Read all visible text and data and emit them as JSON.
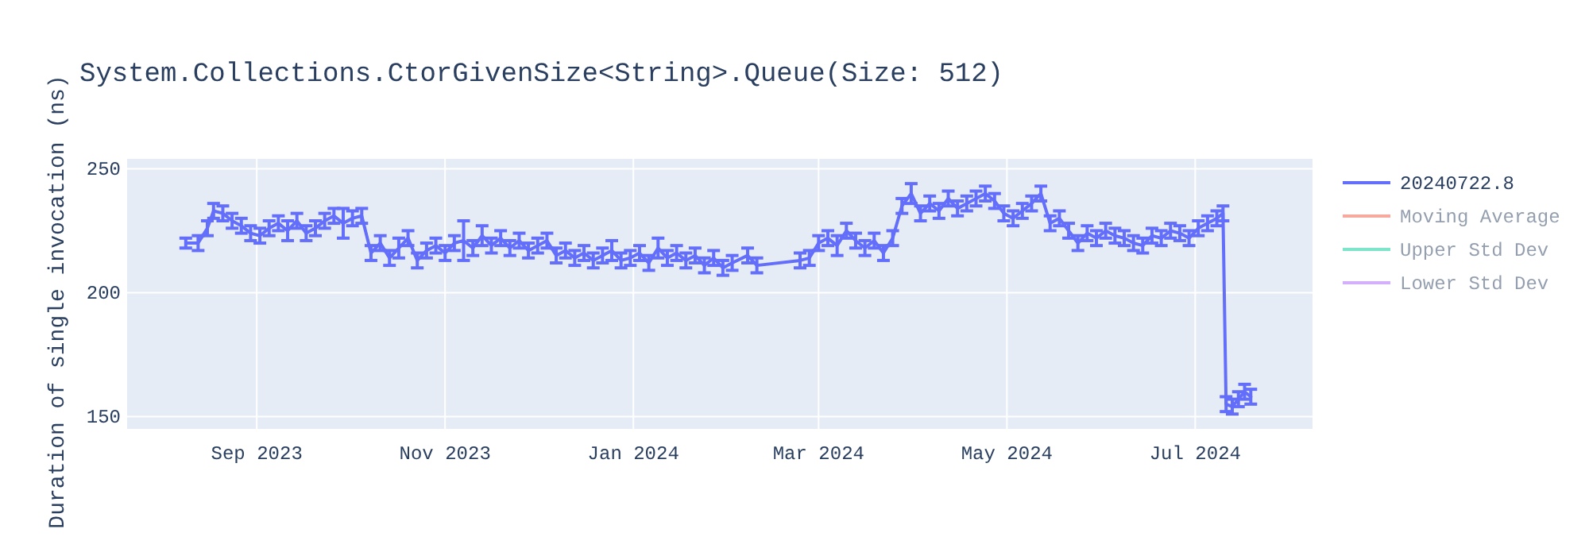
{
  "chart_data": {
    "type": "line",
    "title": "System.Collections.CtorGivenSize<String>.Queue(Size: 512)",
    "ylabel": "Duration of single invocation (ns)",
    "xlim": [
      "2023-07-21",
      "2024-08-08"
    ],
    "xticks": [
      {
        "value": "2023-09-01",
        "label": "Sep 2023"
      },
      {
        "value": "2023-11-01",
        "label": "Nov 2023"
      },
      {
        "value": "2024-01-01",
        "label": "Jan 2024"
      },
      {
        "value": "2024-03-01",
        "label": "Mar 2024"
      },
      {
        "value": "2024-05-01",
        "label": "May 2024"
      },
      {
        "value": "2024-07-01",
        "label": "Jul 2024"
      }
    ],
    "ylim": [
      145,
      254
    ],
    "yticks": [
      150,
      200,
      250
    ],
    "grid": true,
    "legend": "top right",
    "marker": "none",
    "line_style": "solid",
    "series": [
      {
        "name": "20240722.8",
        "color": "#636efa",
        "x": [
          "2023-08-09",
          "2023-08-13",
          "2023-08-16",
          "2023-08-18",
          "2023-08-21",
          "2023-08-24",
          "2023-08-27",
          "2023-08-30",
          "2023-09-02",
          "2023-09-05",
          "2023-09-08",
          "2023-09-11",
          "2023-09-14",
          "2023-09-17",
          "2023-09-20",
          "2023-09-23",
          "2023-09-26",
          "2023-09-29",
          "2023-10-02",
          "2023-10-05",
          "2023-10-08",
          "2023-10-11",
          "2023-10-14",
          "2023-10-17",
          "2023-10-20",
          "2023-10-23",
          "2023-10-26",
          "2023-10-29",
          "2023-11-01",
          "2023-11-04",
          "2023-11-07",
          "2023-11-10",
          "2023-11-13",
          "2023-11-16",
          "2023-11-19",
          "2023-11-22",
          "2023-11-25",
          "2023-11-28",
          "2023-12-01",
          "2023-12-04",
          "2023-12-07",
          "2023-12-10",
          "2023-12-13",
          "2023-12-16",
          "2023-12-19",
          "2023-12-22",
          "2023-12-25",
          "2023-12-28",
          "2023-12-31",
          "2024-01-03",
          "2024-01-06",
          "2024-01-09",
          "2024-01-12",
          "2024-01-15",
          "2024-01-18",
          "2024-01-21",
          "2024-01-24",
          "2024-01-27",
          "2024-01-30",
          "2024-02-02",
          "2024-02-07",
          "2024-02-10",
          "2024-02-24",
          "2024-02-27",
          "2024-03-01",
          "2024-03-04",
          "2024-03-07",
          "2024-03-10",
          "2024-03-13",
          "2024-03-16",
          "2024-03-19",
          "2024-03-22",
          "2024-03-25",
          "2024-03-28",
          "2024-03-31",
          "2024-04-03",
          "2024-04-06",
          "2024-04-09",
          "2024-04-12",
          "2024-04-15",
          "2024-04-18",
          "2024-04-21",
          "2024-04-24",
          "2024-04-27",
          "2024-04-30",
          "2024-05-03",
          "2024-05-06",
          "2024-05-09",
          "2024-05-12",
          "2024-05-15",
          "2024-05-18",
          "2024-05-21",
          "2024-05-24",
          "2024-05-27",
          "2024-05-30",
          "2024-06-02",
          "2024-06-05",
          "2024-06-08",
          "2024-06-11",
          "2024-06-14",
          "2024-06-17",
          "2024-06-20",
          "2024-06-23",
          "2024-06-26",
          "2024-06-29",
          "2024-07-02",
          "2024-07-05",
          "2024-07-08",
          "2024-07-10",
          "2024-07-11",
          "2024-07-13",
          "2024-07-15",
          "2024-07-17",
          "2024-07-19"
        ],
        "values": [
          220,
          220,
          226,
          233,
          232,
          229,
          227,
          224,
          223,
          226,
          228,
          225,
          229,
          224,
          226,
          229,
          231,
          228,
          230,
          231,
          216,
          220,
          214,
          218,
          222,
          213,
          217,
          219,
          216,
          220,
          221,
          218,
          223,
          219,
          222,
          218,
          221,
          217,
          219,
          221,
          215,
          217,
          214,
          216,
          213,
          215,
          217,
          213,
          214,
          216,
          212,
          218,
          214,
          216,
          213,
          215,
          211,
          214,
          210,
          212,
          215,
          211,
          213,
          214,
          220,
          222,
          219,
          225,
          221,
          218,
          221,
          216,
          222,
          235,
          240,
          232,
          236,
          233,
          238,
          234,
          236,
          238,
          240,
          237,
          232,
          230,
          233,
          236,
          240,
          228,
          230,
          225,
          220,
          224,
          222,
          225,
          223,
          222,
          220,
          219,
          223,
          222,
          225,
          224,
          222,
          226,
          228,
          230,
          232,
          155,
          154,
          157,
          160,
          158
        ],
        "errors": [
          2,
          3,
          3,
          3,
          3,
          3,
          3,
          3,
          3,
          3,
          3,
          4,
          3,
          3,
          3,
          3,
          3,
          6,
          3,
          3,
          3,
          3,
          3,
          4,
          3,
          3,
          3,
          3,
          3,
          3,
          8,
          3,
          4,
          3,
          3,
          3,
          3,
          3,
          3,
          3,
          3,
          3,
          3,
          3,
          3,
          3,
          4,
          3,
          3,
          3,
          3,
          4,
          3,
          3,
          3,
          3,
          3,
          3,
          3,
          3,
          3,
          3,
          3,
          3,
          3,
          3,
          4,
          3,
          3,
          3,
          3,
          3,
          3,
          3,
          4,
          3,
          3,
          3,
          3,
          3,
          3,
          3,
          3,
          3,
          3,
          3,
          3,
          3,
          3,
          3,
          3,
          3,
          3,
          3,
          3,
          3,
          3,
          3,
          3,
          3,
          3,
          3,
          3,
          3,
          3,
          3,
          3,
          3,
          3,
          3,
          3,
          3,
          3,
          3
        ]
      },
      {
        "name": "Moving Average",
        "color": "#ef553b"
      },
      {
        "name": "Upper Std Dev",
        "color": "#00cc96"
      },
      {
        "name": "Lower Std Dev",
        "color": "#ab63fa"
      }
    ]
  }
}
